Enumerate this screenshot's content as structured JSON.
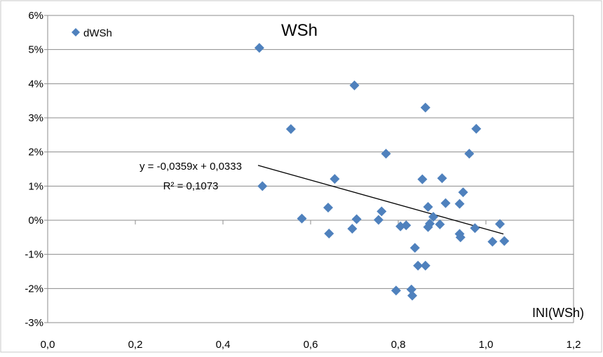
{
  "chart_data": {
    "type": "scatter",
    "title": "WSh",
    "xlabel": "INI(WSh)",
    "ylabel": "",
    "xlim": [
      0,
      1.2
    ],
    "ylim": [
      -0.03,
      0.06
    ],
    "x_ticks": [
      "0,0",
      "0,2",
      "0,4",
      "0,6",
      "0,8",
      "1,0",
      "1,2"
    ],
    "y_ticks": [
      "-3%",
      "-2%",
      "-1%",
      "0%",
      "1%",
      "2%",
      "3%",
      "4%",
      "5%",
      "6%"
    ],
    "grid": "horizontal",
    "legend_position": "top-left",
    "series": [
      {
        "name": "dWSh",
        "marker": "diamond",
        "color": "#4f81bd",
        "points": [
          [
            0.483,
            0.0505
          ],
          [
            0.49,
            0.01
          ],
          [
            0.555,
            0.0267
          ],
          [
            0.58,
            0.0005
          ],
          [
            0.64,
            0.0037
          ],
          [
            0.642,
            -0.0039
          ],
          [
            0.655,
            0.0121
          ],
          [
            0.695,
            -0.0025
          ],
          [
            0.7,
            0.0395
          ],
          [
            0.705,
            0.0003
          ],
          [
            0.755,
            0.0001
          ],
          [
            0.762,
            0.0026
          ],
          [
            0.772,
            0.0195
          ],
          [
            0.795,
            -0.0206
          ],
          [
            0.805,
            -0.0018
          ],
          [
            0.818,
            -0.0015
          ],
          [
            0.83,
            -0.0203
          ],
          [
            0.832,
            -0.0221
          ],
          [
            0.838,
            -0.0081
          ],
          [
            0.845,
            -0.0133
          ],
          [
            0.855,
            0.012
          ],
          [
            0.862,
            -0.0133
          ],
          [
            0.862,
            0.033
          ],
          [
            0.868,
            -0.002
          ],
          [
            0.868,
            0.0039
          ],
          [
            0.872,
            -0.001
          ],
          [
            0.88,
            0.001
          ],
          [
            0.895,
            -0.0012
          ],
          [
            0.9,
            0.0123
          ],
          [
            0.908,
            0.005
          ],
          [
            0.94,
            0.0048
          ],
          [
            0.94,
            -0.004
          ],
          [
            0.942,
            -0.005
          ],
          [
            0.948,
            0.0082
          ],
          [
            0.962,
            0.0195
          ],
          [
            0.975,
            -0.0023
          ],
          [
            0.978,
            0.0268
          ],
          [
            1.015,
            -0.0063
          ],
          [
            1.032,
            -0.0011
          ],
          [
            1.042,
            -0.0061
          ]
        ]
      }
    ],
    "trendline": {
      "type": "linear",
      "slope": -0.0359,
      "intercept": 0.0333,
      "x_range": [
        0.48,
        1.04
      ],
      "equation_label": "y = -0,0359x + 0,0333",
      "r2_label": "R² = 0,1073",
      "color": "#000000"
    }
  }
}
